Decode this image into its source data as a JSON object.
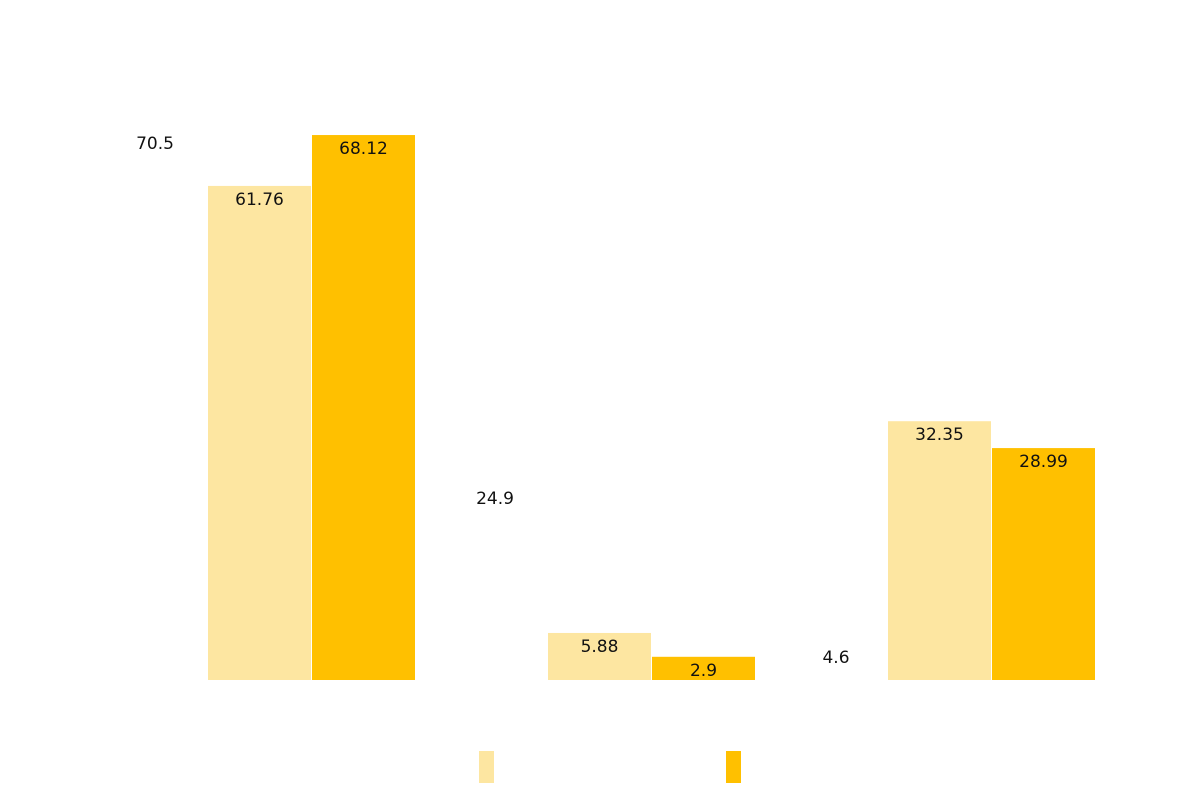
{
  "chart_data": {
    "type": "bar",
    "categories": [
      "",
      "",
      ""
    ],
    "series": [
      {
        "values": [
          61.76,
          5.88,
          32.35
        ],
        "color": "#FDE6A1"
      },
      {
        "values": [
          68.12,
          2.9,
          28.99
        ],
        "color": "#FFC000"
      }
    ],
    "annotations": [
      "70.5",
      "24.9",
      "4.6"
    ],
    "ylim": [
      0,
      75
    ],
    "grid": false,
    "legend": "bottom"
  }
}
